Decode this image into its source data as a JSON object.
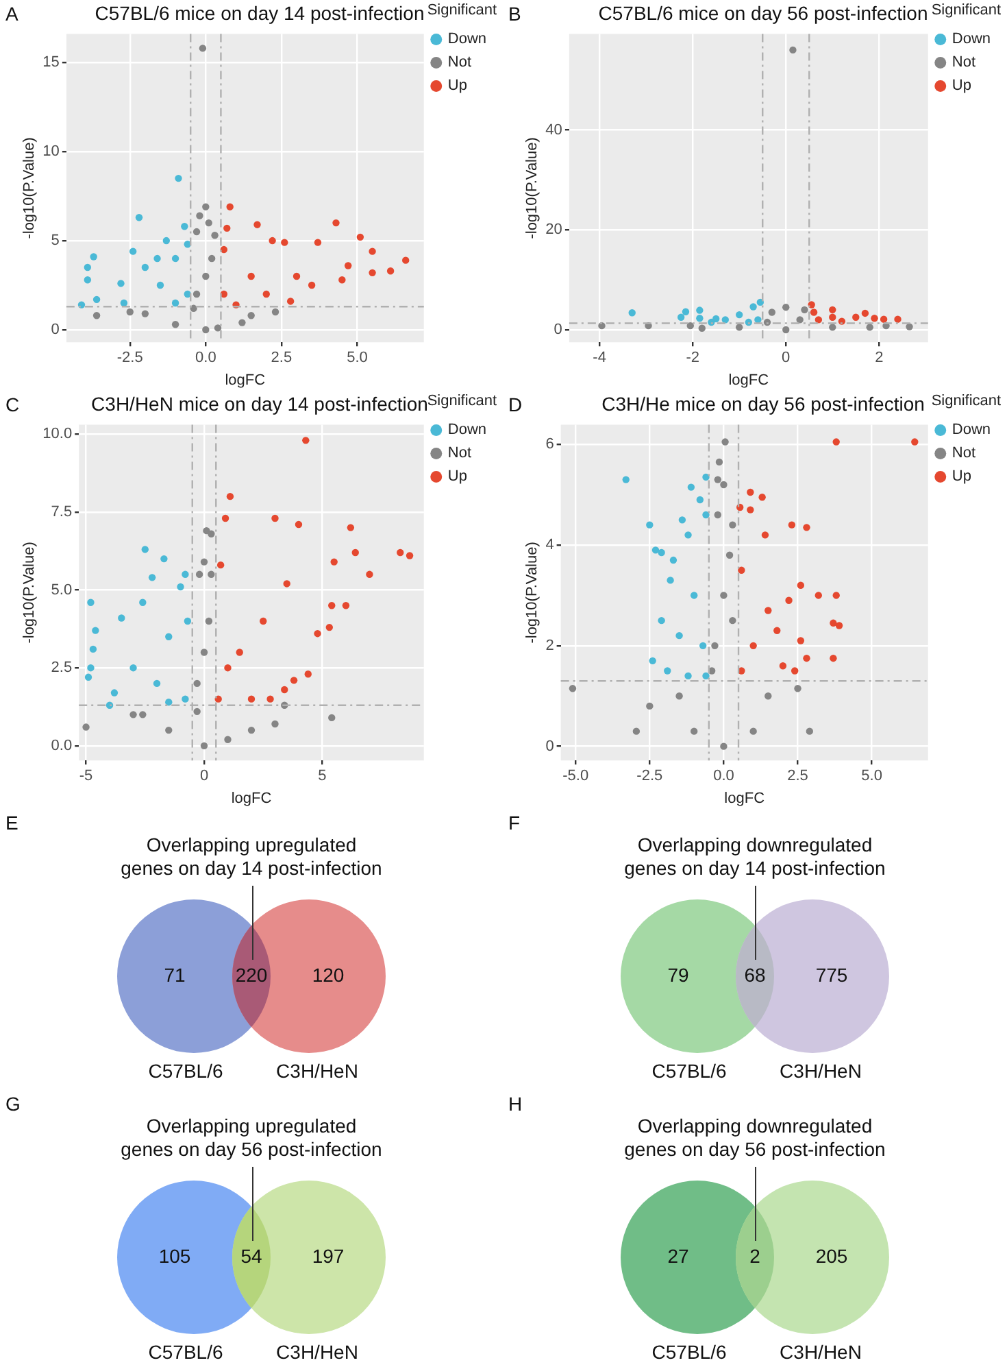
{
  "chart_data": [
    {
      "type": "scatter",
      "title": "C57BL/6 mice on day 14 post-infection",
      "annotations": [
        "A"
      ],
      "xlabel": "logFC",
      "ylabel": "-log10(P.Value)",
      "legend_title": "Significant",
      "legend": "right",
      "grid": true,
      "marker": "circle",
      "xlim": [
        -4.6,
        7.2
      ],
      "ylim": [
        -0.7,
        16.6
      ],
      "xticks": [
        {
          "value": -2.5,
          "label": "-2.5"
        },
        {
          "value": 0,
          "label": "0.0"
        },
        {
          "value": 2.5,
          "label": "2.5"
        },
        {
          "value": 5,
          "label": "5.0"
        }
      ],
      "yticks": [
        0,
        5,
        10,
        15
      ],
      "ref_lines": [
        {
          "axis": "x",
          "value": -0.5
        },
        {
          "axis": "x",
          "value": 0.5
        },
        {
          "axis": "y",
          "value": 1.3
        }
      ],
      "series": [
        {
          "name": "Down",
          "color": "#4ab9d6",
          "x": [
            -0.9,
            -2.2,
            -0.7,
            -1.3,
            -2.4,
            -3.7,
            -3.9,
            -3.9,
            -4.1,
            -3.6,
            -2,
            -1,
            -1.5,
            -0.6,
            -2.8,
            -1,
            -2.7,
            -0.6,
            -1.6
          ],
          "values": [
            8.5,
            6.3,
            5.8,
            5,
            4.4,
            4.1,
            3.5,
            2.8,
            1.4,
            1.7,
            3.5,
            4,
            2.5,
            2,
            2.6,
            1.5,
            1.5,
            4.8,
            4
          ]
        },
        {
          "name": "Not",
          "color": "#858585",
          "x": [
            -0.1,
            0,
            -0.2,
            0.1,
            -0.3,
            0.3,
            0,
            -0.3,
            0.2,
            -3.6,
            -2.5,
            1.2,
            0,
            -1,
            2.3,
            -0.4,
            0.4,
            -2,
            1.5
          ],
          "values": [
            15.8,
            6.9,
            6.4,
            6,
            5.5,
            5.3,
            3,
            2,
            4,
            0.8,
            1,
            0.4,
            0,
            0.3,
            1,
            1.2,
            0.1,
            0.9,
            0.8
          ]
        },
        {
          "name": "Up",
          "color": "#e5482f",
          "x": [
            0.8,
            1.7,
            4.3,
            5.1,
            3.7,
            2.6,
            2.2,
            0.7,
            5.5,
            6.6,
            6.1,
            5.5,
            4.7,
            3,
            1.5,
            0.6,
            0.6,
            2,
            1,
            3.5,
            4.5,
            2.8
          ],
          "values": [
            6.9,
            5.9,
            6,
            5.2,
            4.9,
            4.9,
            5,
            5.7,
            4.4,
            3.9,
            3.3,
            3.2,
            3.6,
            3,
            3,
            2,
            4.5,
            2,
            1.4,
            2.5,
            2.8,
            1.6
          ]
        }
      ]
    },
    {
      "type": "scatter",
      "title": "C57BL/6 mice on day 56 post-infection",
      "annotations": [
        "B"
      ],
      "xlabel": "logFC",
      "ylabel": "-log10(P.Value)",
      "legend_title": "Significant",
      "legend": "right",
      "grid": true,
      "marker": "circle",
      "xlim": [
        -4.65,
        3.05
      ],
      "ylim": [
        -2.5,
        59.2
      ],
      "xticks": [
        -4,
        -2,
        0,
        2
      ],
      "yticks": [
        0,
        20,
        40
      ],
      "ref_lines": [
        {
          "axis": "x",
          "value": -0.5
        },
        {
          "axis": "x",
          "value": 0.5
        },
        {
          "axis": "y",
          "value": 1.3
        }
      ],
      "series": [
        {
          "name": "Down",
          "color": "#4ab9d6",
          "x": [
            -3.3,
            -2.25,
            -2.15,
            -1.85,
            -1.85,
            -1.5,
            -0.55,
            -0.7,
            -1,
            -1.3,
            -0.6,
            -0.8,
            -1.6
          ],
          "values": [
            3.4,
            2.5,
            3.6,
            3.9,
            2.3,
            2.2,
            5.5,
            4.6,
            3,
            2,
            2,
            1.5,
            1.5
          ]
        },
        {
          "name": "Not",
          "color": "#858585",
          "x": [
            0.15,
            -3.95,
            -2.95,
            -2.05,
            2.15,
            2.65,
            0,
            -0.3,
            0.4,
            0,
            -1,
            1,
            -1.8,
            1.8,
            0.3,
            -0.4
          ],
          "values": [
            56,
            0.8,
            0.8,
            0.8,
            0.8,
            0.6,
            4.5,
            3.5,
            4,
            0,
            0.5,
            0.5,
            0.3,
            0.5,
            2,
            1.5
          ]
        },
        {
          "name": "Up",
          "color": "#e5482f",
          "x": [
            0.55,
            1,
            1.7,
            2.1,
            2.4,
            1.5,
            0.7,
            1.2,
            0.6,
            1.9,
            1
          ],
          "values": [
            5,
            4,
            3.3,
            2.1,
            2.1,
            2.5,
            2,
            1.7,
            3.5,
            2.3,
            2.5
          ]
        }
      ]
    },
    {
      "type": "scatter",
      "title": "C3H/HeN mice on day 14 post-infection",
      "annotations": [
        "C"
      ],
      "xlabel": "logFC",
      "ylabel": "-log10(P.Value)",
      "legend_title": "Significant",
      "legend": "right",
      "grid": true,
      "marker": "circle",
      "xlim": [
        -5.3,
        9.3
      ],
      "ylim": [
        -0.47,
        10.3
      ],
      "xticks": [
        -5,
        0,
        5
      ],
      "yticks": [
        {
          "value": 0,
          "label": "0.0"
        },
        {
          "value": 2.5,
          "label": "2.5"
        },
        {
          "value": 5,
          "label": "5.0"
        },
        {
          "value": 7.5,
          "label": "7.5"
        },
        {
          "value": 10,
          "label": "10.0"
        }
      ],
      "ref_lines": [
        {
          "axis": "x",
          "value": -0.5
        },
        {
          "axis": "x",
          "value": 0.5
        },
        {
          "axis": "y",
          "value": 1.3
        }
      ],
      "series": [
        {
          "name": "Down",
          "color": "#4ab9d6",
          "x": [
            -2.5,
            -1.7,
            -2.2,
            -0.8,
            -1,
            -2.6,
            -4.8,
            -3.5,
            -4.6,
            -4.7,
            -4.8,
            -4.9,
            -4,
            -3,
            -1.5,
            -0.7,
            -2,
            -0.8,
            -3.8,
            -1.5
          ],
          "values": [
            6.3,
            6,
            5.4,
            5.5,
            5.1,
            4.6,
            4.6,
            4.1,
            3.7,
            3.1,
            2.5,
            2.2,
            1.3,
            2.5,
            3.5,
            4,
            2,
            1.5,
            1.7,
            1.4
          ]
        },
        {
          "name": "Not",
          "color": "#858585",
          "x": [
            0.1,
            0.3,
            0,
            -0.2,
            0.3,
            0,
            -0.3,
            0.2,
            -5,
            -2.6,
            5.4,
            3.4,
            0,
            -1.5,
            2,
            -3,
            1,
            -0.3,
            3
          ],
          "values": [
            6.9,
            6.8,
            5.9,
            5.5,
            5.5,
            3,
            2,
            4,
            0.6,
            1,
            0.9,
            1.3,
            0,
            0.5,
            0.5,
            1,
            0.2,
            1.1,
            0.7
          ]
        },
        {
          "name": "Up",
          "color": "#e5482f",
          "x": [
            4.3,
            1.1,
            3,
            0.9,
            4,
            6.2,
            8.3,
            8.7,
            6.4,
            7,
            5.5,
            6,
            5.3,
            4.8,
            3.8,
            4.4,
            3.4,
            2.8,
            0.6,
            1.5,
            2.5,
            0.7,
            3.5,
            1,
            2,
            5.4
          ],
          "values": [
            9.8,
            8,
            7.3,
            7.3,
            7.1,
            7,
            6.2,
            6.1,
            6.2,
            5.5,
            5.9,
            4.5,
            3.8,
            3.6,
            2.1,
            2.3,
            1.8,
            1.5,
            1.5,
            3,
            4,
            5.8,
            5.2,
            2.5,
            1.5,
            4.5
          ]
        }
      ]
    },
    {
      "type": "scatter",
      "title": "C3H/He mice on day 56 post-infection",
      "annotations": [
        "D"
      ],
      "xlabel": "logFC",
      "ylabel": "-log10(P.Value)",
      "legend_title": "Significant",
      "legend": "right",
      "grid": true,
      "marker": "circle",
      "xlim": [
        -5.5,
        6.9
      ],
      "ylim": [
        -0.28,
        6.39
      ],
      "xticks": [
        {
          "value": -5,
          "label": "-5.0"
        },
        {
          "value": -2.5,
          "label": "-2.5"
        },
        {
          "value": 0,
          "label": "0.0"
        },
        {
          "value": 2.5,
          "label": "2.5"
        },
        {
          "value": 5,
          "label": "5.0"
        }
      ],
      "yticks": [
        0,
        2,
        4,
        6
      ],
      "ref_lines": [
        {
          "axis": "x",
          "value": -0.5
        },
        {
          "axis": "x",
          "value": 0.5
        },
        {
          "axis": "y",
          "value": 1.3
        }
      ],
      "series": [
        {
          "name": "Down",
          "color": "#4ab9d6",
          "x": [
            -3.3,
            -0.6,
            -1.1,
            -0.8,
            -1.4,
            -2.5,
            -0.6,
            -1.2,
            -2.3,
            -2.1,
            -1.7,
            -1.8,
            -2.4,
            -1.9,
            -2.1,
            -1,
            -0.7,
            -1.5,
            -0.6,
            -1.2
          ],
          "values": [
            5.3,
            5.35,
            5.15,
            4.9,
            4.5,
            4.4,
            4.6,
            4.2,
            3.9,
            3.85,
            3.7,
            3.3,
            1.7,
            1.5,
            2.5,
            3,
            2,
            2.2,
            1.4,
            1.4
          ]
        },
        {
          "name": "Not",
          "color": "#858585",
          "x": [
            0.05,
            -0.15,
            -0.2,
            0,
            -0.2,
            0.3,
            0,
            -0.3,
            0.2,
            -5.1,
            -2.95,
            2.9,
            2.5,
            -2.5,
            0,
            -1,
            1,
            -1.5,
            1.5,
            -0.4,
            0.3
          ],
          "values": [
            6.05,
            5.65,
            5.3,
            5.2,
            4.6,
            4.4,
            3,
            2,
            3.8,
            1.15,
            0.3,
            0.3,
            1.15,
            0.8,
            0,
            0.3,
            0.3,
            1,
            1,
            1.5,
            2.5
          ]
        },
        {
          "name": "Up",
          "color": "#e5482f",
          "x": [
            3.8,
            6.45,
            0.9,
            1.3,
            0.55,
            0.9,
            2.3,
            2.8,
            1.4,
            3.2,
            3.8,
            2.6,
            2.2,
            3.9,
            3.7,
            3.7,
            2.8,
            2.6,
            1.8,
            2,
            0.6,
            1,
            0.6,
            1.5,
            2.4
          ],
          "values": [
            6.05,
            6.05,
            5.05,
            4.95,
            4.75,
            4.7,
            4.4,
            4.35,
            4.2,
            3,
            3,
            3.2,
            2.9,
            2.4,
            2.45,
            1.75,
            1.75,
            2.1,
            2.3,
            1.6,
            3.5,
            2,
            1.5,
            2.7,
            1.5
          ]
        }
      ]
    },
    {
      "type": "other",
      "title": "Overlapping upregulated genes on day 14 post-infection",
      "annotations": [
        "E"
      ],
      "categories": [
        "C57BL/6",
        null,
        "C3H/HeN"
      ],
      "values": [
        71,
        220,
        120
      ],
      "data_labels": true,
      "colors": [
        "#8c9fd8",
        "#a95a76",
        "#e68c8b"
      ]
    },
    {
      "type": "other",
      "title": "Overlapping downregulated genes on day 14 post-infection",
      "annotations": [
        "F"
      ],
      "categories": [
        "C57BL/6",
        null,
        "C3H/HeN"
      ],
      "values": [
        79,
        68,
        775
      ],
      "data_labels": true,
      "colors": [
        "#a5d9a5",
        "#b8bac5",
        "#cfc6e0"
      ]
    },
    {
      "type": "other",
      "title": "Overlapping upregulated genes on day 56 post-infection",
      "annotations": [
        "G"
      ],
      "categories": [
        "C57BL/6",
        null,
        "C3H/HeN"
      ],
      "values": [
        105,
        54,
        197
      ],
      "data_labels": true,
      "colors": [
        "#80abf5",
        "#b5d57c",
        "#cde5a9"
      ]
    },
    {
      "type": "other",
      "title": "Overlapping downregulated genes on day 56 post-infection",
      "annotations": [
        "H"
      ],
      "categories": [
        "C57BL/6",
        null,
        "C3H/HeN"
      ],
      "values": [
        27,
        2,
        205
      ],
      "data_labels": true,
      "colors": [
        "#70bd87",
        "#9ccf8e",
        "#c4e4b0"
      ]
    }
  ]
}
